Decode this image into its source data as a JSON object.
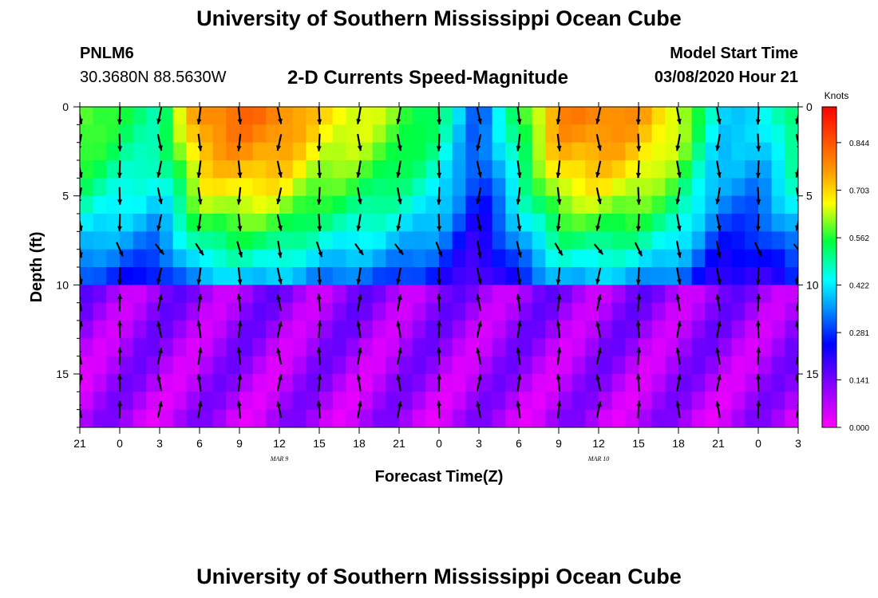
{
  "header": {
    "title": "University of Southern Mississippi Ocean Cube",
    "station_id": "PNLM6",
    "coordinates": "30.3680N 88.5630W",
    "subtitle": "2-D Currents Speed-Magnitude",
    "model_start_label": "Model Start Time",
    "model_start_value": "03/08/2020 Hour 21"
  },
  "footer": {
    "title": "University of Southern Mississippi Ocean Cube"
  },
  "chart_data": {
    "type": "heatmap",
    "title": "2-D Currents Speed-Magnitude",
    "xlabel": "Forecast Time(Z)",
    "ylabel": "Depth (ft)",
    "x_ticks": [
      "21",
      "0",
      "3",
      "6",
      "9",
      "12",
      "15",
      "18",
      "21",
      "0",
      "3",
      "6",
      "9",
      "12",
      "15",
      "18",
      "21",
      "0",
      "3"
    ],
    "x_range_hours": [
      0,
      54
    ],
    "date_labels": [
      {
        "label": "MAR  9",
        "hour": 15
      },
      {
        "label": "MAR  10",
        "hour": 39
      }
    ],
    "y_ticks": [
      0,
      5,
      10,
      15
    ],
    "ylim_ft": [
      0,
      18
    ],
    "colorbar": {
      "units": "Knots",
      "ticks": [
        "0.000",
        "0.141",
        "0.281",
        "0.422",
        "0.562",
        "0.703",
        "0.844"
      ],
      "tick_values": [
        0.0,
        0.141,
        0.281,
        0.422,
        0.562,
        0.703,
        0.844
      ],
      "range": [
        0.0,
        0.95
      ]
    },
    "depth_levels_ft": [
      0.5,
      2.0,
      3.5,
      5.0,
      6.5,
      8.0,
      9.5,
      11.0,
      12.5,
      14.0,
      15.5,
      17.0
    ],
    "surface_speed_profile_knots": [
      0.62,
      0.55,
      0.5,
      0.78,
      0.82,
      0.8,
      0.7,
      0.66,
      0.6,
      0.52,
      0.3,
      0.55,
      0.78,
      0.8,
      0.76,
      0.66,
      0.42,
      0.4,
      0.56
    ],
    "vector_direction_note": "mostly southward (down) near surface and northward (up) at depth",
    "grid": false
  }
}
